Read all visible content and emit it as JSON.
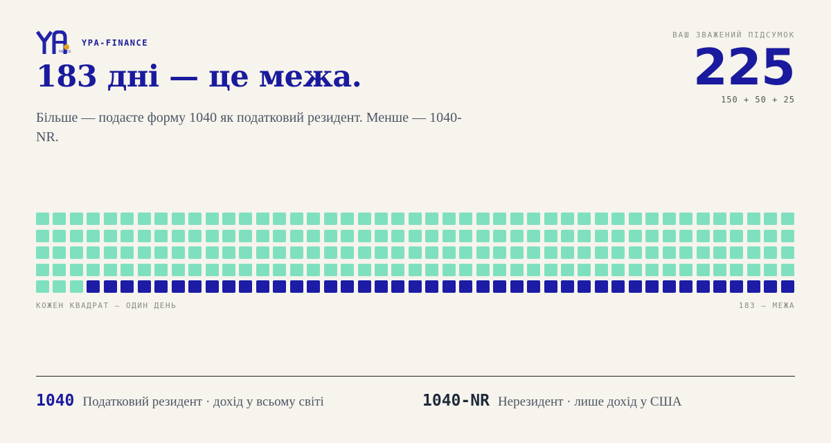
{
  "brand": {
    "name": "YPA-FINANCE",
    "logo_text": "YPA",
    "logo_subtext": "FINANCE"
  },
  "headline": "183 дні — це межа.",
  "subtitle": "Більше — подаєте форму 1040 як податковий резидент. Менше — 1040-NR.",
  "score": {
    "label": "ВАШ ЗВАЖЕНИЙ ПІДСУМОК",
    "value": "225",
    "breakdown": "150 + 50 + 25"
  },
  "day_grid": {
    "total_days": 228,
    "filled_days": 183,
    "filled_color": "#7fe0bf",
    "empty_color": "#1c1ca6",
    "caption_left": "КОЖЕН КВАДРАТ — ОДИН ДЕНЬ",
    "caption_right": "183 — МЕЖА"
  },
  "legend": [
    {
      "code": "1040",
      "text": "Податковий резидент · дохід у всьому світі"
    },
    {
      "code": "1040-NR",
      "text": "Нерезидент · лише дохід у США"
    }
  ],
  "colors": {
    "accent": "#1a1a9e",
    "mint": "#7fe0bf",
    "background": "#f6f4ec"
  }
}
